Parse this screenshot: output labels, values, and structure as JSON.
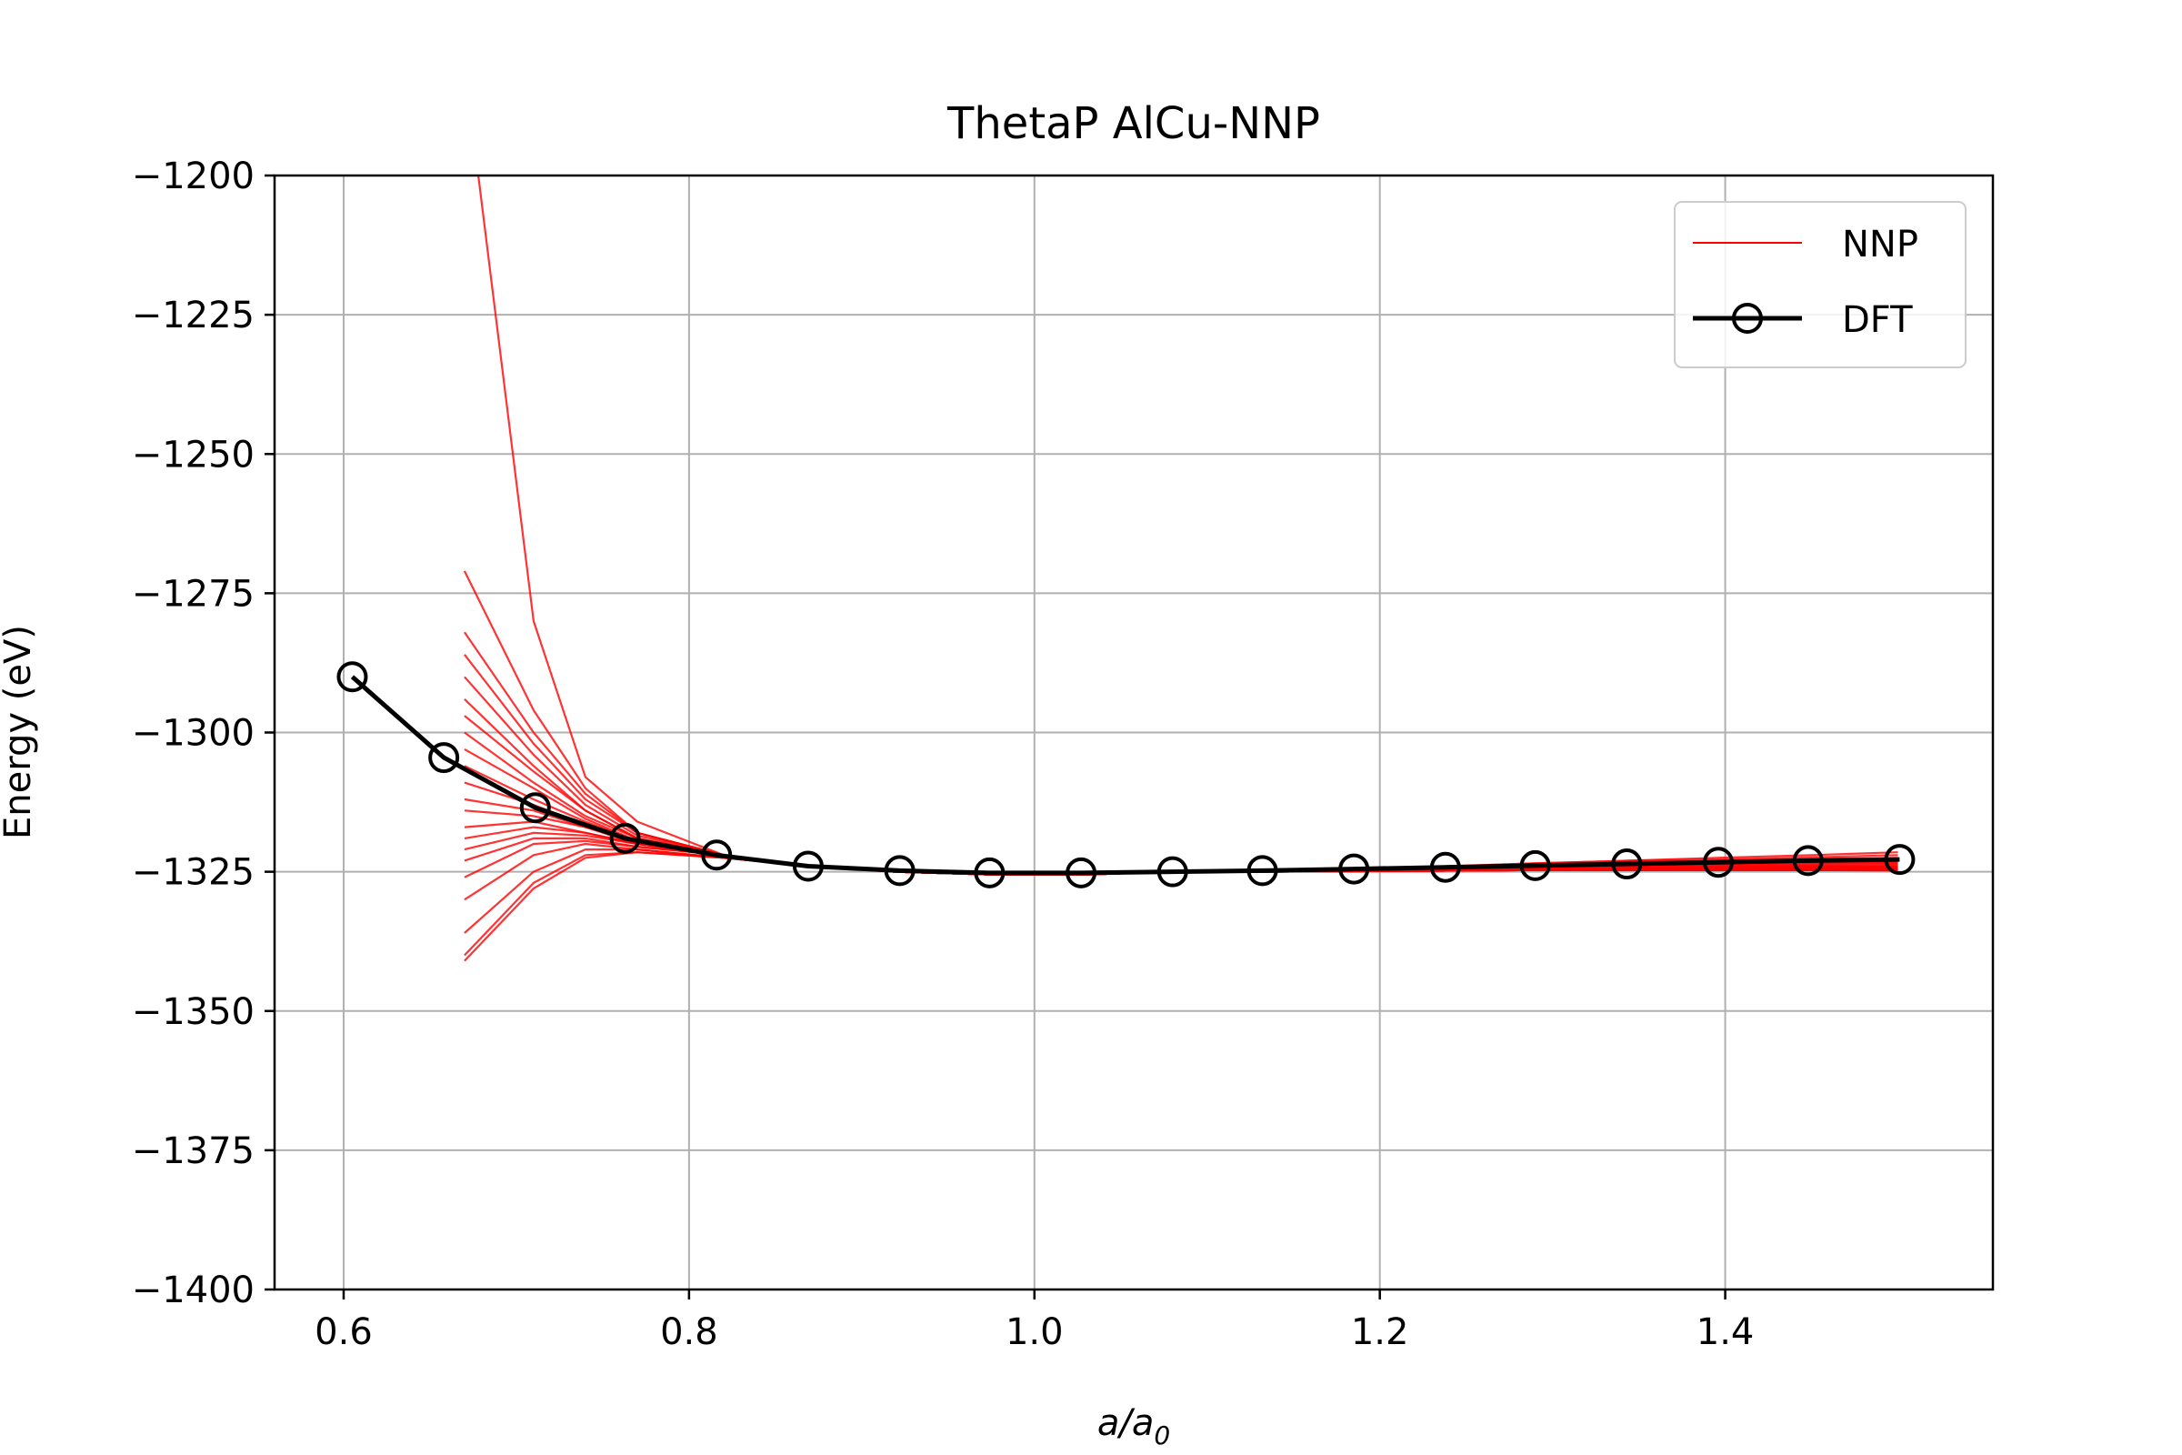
{
  "chart_data": {
    "type": "line",
    "title": "ThetaP AlCu-NNP",
    "xlabel_main": "a/a",
    "xlabel_sub": "0",
    "ylabel": "Energy (eV)",
    "xlim": [
      0.56,
      1.555
    ],
    "ylim": [
      -1400,
      -1200
    ],
    "xticks": [
      0.6,
      0.8,
      1.0,
      1.2,
      1.4
    ],
    "xtick_labels": [
      "0.6",
      "0.8",
      "1.0",
      "1.2",
      "1.4"
    ],
    "yticks": [
      -1200,
      -1225,
      -1250,
      -1275,
      -1300,
      -1325,
      -1350,
      -1375,
      -1400
    ],
    "ytick_labels": [
      "−1200",
      "−1225",
      "−1250",
      "−1275",
      "−1300",
      "−1325",
      "−1350",
      "−1375",
      "−1400"
    ],
    "grid": true,
    "legend_position": "top-right",
    "series": [
      {
        "name": "NNP",
        "color": "#ff0000",
        "style": "thin-lines-ensemble",
        "x": [
          0.67,
          0.71,
          0.74,
          0.77,
          0.82,
          0.87,
          0.92,
          0.975,
          1.03,
          1.08,
          1.13,
          1.185,
          1.24,
          1.29,
          1.345,
          1.395,
          1.45,
          1.5
        ],
        "ensemble_y": [
          [
            -1180,
            -1280,
            -1308,
            -1316,
            -1322,
            -1324,
            -1325,
            -1325.5,
            -1325.5,
            -1325,
            -1325,
            -1324.5,
            -1324,
            -1323.5,
            -1323,
            -1322.5,
            -1322,
            -1321.5
          ],
          [
            -1271,
            -1296,
            -1310,
            -1318,
            -1322,
            -1324,
            -1325,
            -1325.5,
            -1325.5,
            -1325,
            -1325,
            -1324.5,
            -1324,
            -1323.5,
            -1323,
            -1322.8,
            -1322.4,
            -1322
          ],
          [
            -1282,
            -1300,
            -1311,
            -1318,
            -1322,
            -1324,
            -1325,
            -1325.5,
            -1325.5,
            -1325,
            -1325,
            -1324.5,
            -1324,
            -1323.7,
            -1323.3,
            -1323,
            -1322.7,
            -1322.5
          ],
          [
            -1286,
            -1302,
            -1312,
            -1318,
            -1322,
            -1324,
            -1325,
            -1325.5,
            -1325.5,
            -1325,
            -1325,
            -1324.5,
            -1324,
            -1323.7,
            -1323.4,
            -1323.2,
            -1323,
            -1322.8
          ],
          [
            -1290,
            -1304,
            -1313,
            -1318.5,
            -1322,
            -1324,
            -1325,
            -1325.5,
            -1325.5,
            -1325,
            -1325,
            -1324.6,
            -1324.2,
            -1323.9,
            -1323.6,
            -1323.4,
            -1323.2,
            -1323
          ],
          [
            -1294,
            -1306,
            -1314,
            -1319,
            -1322,
            -1324,
            -1325,
            -1325.5,
            -1325.5,
            -1325,
            -1325,
            -1324.6,
            -1324.2,
            -1324,
            -1323.8,
            -1323.6,
            -1323.4,
            -1323.2
          ],
          [
            -1297,
            -1307,
            -1314,
            -1319,
            -1322,
            -1324,
            -1325,
            -1325.5,
            -1325.5,
            -1325,
            -1325,
            -1324.7,
            -1324.3,
            -1324.1,
            -1323.9,
            -1323.7,
            -1323.5,
            -1323.4
          ],
          [
            -1300,
            -1309,
            -1315,
            -1319,
            -1322,
            -1324,
            -1325,
            -1325.5,
            -1325.5,
            -1325,
            -1325,
            -1324.7,
            -1324.4,
            -1324.2,
            -1324,
            -1323.8,
            -1323.7,
            -1323.6
          ],
          [
            -1303,
            -1310,
            -1315.5,
            -1319.5,
            -1322,
            -1324,
            -1325,
            -1325.5,
            -1325.5,
            -1325,
            -1325,
            -1324.8,
            -1324.5,
            -1324.3,
            -1324.1,
            -1324,
            -1323.9,
            -1323.8
          ],
          [
            -1306,
            -1312,
            -1316,
            -1319.5,
            -1322,
            -1324,
            -1325,
            -1325.5,
            -1325.5,
            -1325,
            -1325,
            -1324.8,
            -1324.6,
            -1324.4,
            -1324.2,
            -1324.1,
            -1324,
            -1324
          ],
          [
            -1309,
            -1313,
            -1316.5,
            -1319.5,
            -1322,
            -1324,
            -1325,
            -1325.5,
            -1325.5,
            -1325,
            -1325,
            -1324.8,
            -1324.6,
            -1324.5,
            -1324.3,
            -1324.2,
            -1324.1,
            -1324.1
          ],
          [
            -1312,
            -1314,
            -1317,
            -1319.5,
            -1322,
            -1324,
            -1325,
            -1325.5,
            -1325.5,
            -1325,
            -1325,
            -1324.8,
            -1324.7,
            -1324.6,
            -1324.4,
            -1324.3,
            -1324.2,
            -1324.2
          ],
          [
            -1314,
            -1315,
            -1317,
            -1320,
            -1322,
            -1324,
            -1325,
            -1325.5,
            -1325.5,
            -1325,
            -1325,
            -1324.9,
            -1324.7,
            -1324.6,
            -1324.5,
            -1324.4,
            -1324.3,
            -1324.3
          ],
          [
            -1317,
            -1316,
            -1318,
            -1320,
            -1322,
            -1324,
            -1325,
            -1325.5,
            -1325.5,
            -1325,
            -1325,
            -1324.9,
            -1324.8,
            -1324.7,
            -1324.6,
            -1324.5,
            -1324.4,
            -1324.4
          ],
          [
            -1319,
            -1317,
            -1318,
            -1320,
            -1322,
            -1324,
            -1325,
            -1325.5,
            -1325.5,
            -1325,
            -1325,
            -1324.9,
            -1324.8,
            -1324.7,
            -1324.6,
            -1324.5,
            -1324.5,
            -1324.5
          ],
          [
            -1321,
            -1318,
            -1318.5,
            -1320,
            -1322,
            -1324,
            -1325,
            -1325.5,
            -1325.5,
            -1325,
            -1325,
            -1324.9,
            -1324.8,
            -1324.7,
            -1324.6,
            -1324.6,
            -1324.5,
            -1324.5
          ],
          [
            -1323,
            -1319,
            -1319,
            -1320.5,
            -1322,
            -1324,
            -1325,
            -1325.5,
            -1325.5,
            -1325,
            -1325,
            -1324.9,
            -1324.8,
            -1324.7,
            -1324.7,
            -1324.6,
            -1324.6,
            -1324.6
          ],
          [
            -1326,
            -1320,
            -1319.5,
            -1320.5,
            -1322,
            -1324,
            -1325,
            -1325.5,
            -1325.5,
            -1325,
            -1325,
            -1324.9,
            -1324.8,
            -1324.7,
            -1324.7,
            -1324.6,
            -1324.6,
            -1324.6
          ],
          [
            -1330,
            -1322,
            -1320,
            -1321,
            -1322.5,
            -1324,
            -1325,
            -1325.5,
            -1325.5,
            -1325,
            -1325,
            -1324.9,
            -1324.8,
            -1324.7,
            -1324.7,
            -1324.7,
            -1324.7,
            -1324.7
          ],
          [
            -1336,
            -1325,
            -1321,
            -1321,
            -1322.5,
            -1324,
            -1325,
            -1325.5,
            -1325.5,
            -1325,
            -1325,
            -1324.9,
            -1324.8,
            -1324.7,
            -1324.7,
            -1324.7,
            -1324.7,
            -1324.7
          ],
          [
            -1340,
            -1327,
            -1322,
            -1321.5,
            -1322.5,
            -1324,
            -1325,
            -1325.5,
            -1325.5,
            -1325,
            -1325,
            -1324.9,
            -1324.8,
            -1324.7,
            -1324.7,
            -1324.7,
            -1324.7,
            -1324.7
          ],
          [
            -1341,
            -1328,
            -1322.5,
            -1321.5,
            -1322.5,
            -1324,
            -1325,
            -1325.5,
            -1325.5,
            -1325,
            -1325,
            -1324.9,
            -1324.8,
            -1324.7,
            -1324.7,
            -1324.7,
            -1324.7,
            -1324.8
          ]
        ]
      },
      {
        "name": "DFT",
        "color": "#000000",
        "marker": "open-circle",
        "x": [
          0.605,
          0.658,
          0.711,
          0.763,
          0.816,
          0.869,
          0.922,
          0.974,
          1.027,
          1.08,
          1.132,
          1.185,
          1.238,
          1.29,
          1.343,
          1.396,
          1.448,
          1.501
        ],
        "y": [
          -1290,
          -1304.5,
          -1313.5,
          -1319,
          -1322,
          -1324,
          -1324.8,
          -1325.2,
          -1325.2,
          -1325,
          -1324.8,
          -1324.5,
          -1324.2,
          -1323.9,
          -1323.6,
          -1323.3,
          -1323,
          -1322.8
        ]
      }
    ]
  }
}
